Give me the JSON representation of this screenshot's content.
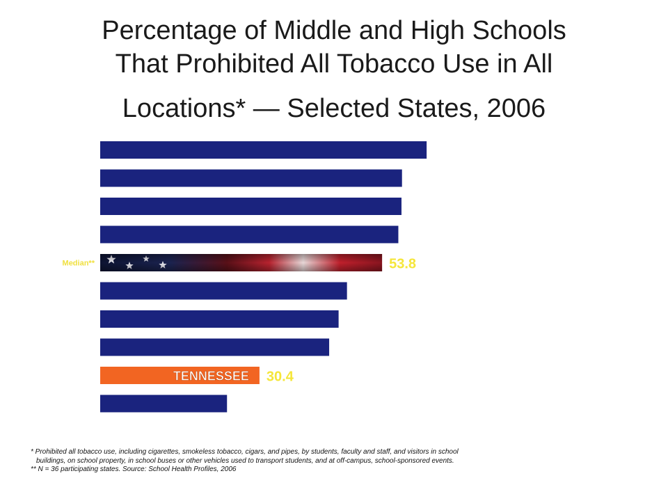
{
  "title": {
    "line1": "Percentage of Middle and High Schools",
    "line2": "That Prohibited All Tobacco Use in All",
    "line3": "Locations* — Selected States, 2006"
  },
  "chart_data": {
    "type": "bar",
    "orientation": "horizontal",
    "xlim": [
      0,
      100
    ],
    "values": [
      62.3,
      57.6,
      57.5,
      56.9,
      53.8,
      47.1,
      45.5,
      43.7,
      30.4,
      24.2
    ],
    "categories": [
      "",
      "",
      "",
      "",
      "Median**",
      "",
      "",
      "",
      "TENNESSEE",
      ""
    ],
    "data_labels": [
      "",
      "",
      "",
      "",
      "53.8",
      "",
      "",
      "",
      "30.4",
      ""
    ],
    "bar_styles": [
      "default",
      "default",
      "default",
      "default",
      "median",
      "default",
      "default",
      "default",
      "highlight",
      "default"
    ],
    "colors": {
      "default": "#1a237e",
      "highlight": "#f26522",
      "label": "#f5e63a",
      "median_label": "#f0e040"
    }
  },
  "footnotes": {
    "line1": "* Prohibited all tobacco use, including cigarettes, smokeless tobacco, cigars, and pipes, by students, faculty and staff, and visitors in school",
    "line2": "buildings, on school property, in school buses or other vehicles used to transport students, and at off-campus, school-sponsored events.",
    "line3": "** N = 36 participating states.  Source: School Health Profiles, 2006"
  }
}
